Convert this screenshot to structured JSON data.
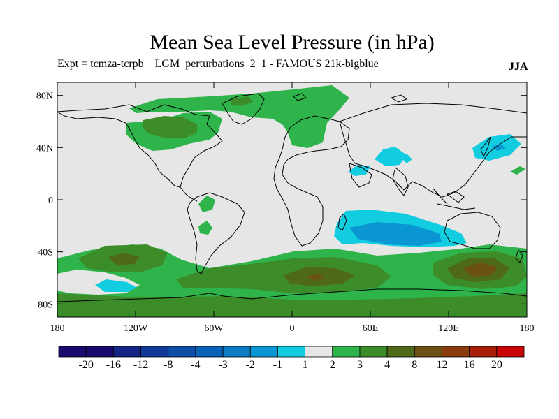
{
  "header": {
    "title": "Mean Sea Level Pressure (in hPa)",
    "subtitle": "Expt = tcmza-tcrpb    LGM_perturbations_2_1 - FAMOUS 21k-bigblue",
    "season": "JJA"
  },
  "axes": {
    "lat_ticks": [
      "80N",
      "40N",
      "0",
      "40S",
      "80S"
    ],
    "lon_ticks": [
      "180",
      "120W",
      "60W",
      "0",
      "60E",
      "120E",
      "180"
    ]
  },
  "colorbar": {
    "labels": [
      "-20",
      "-16",
      "-12",
      "-8",
      "-4",
      "-3",
      "-2",
      "-1",
      "1",
      "2",
      "3",
      "4",
      "8",
      "12",
      "16",
      "20"
    ],
    "colors": [
      "#1a0a6e",
      "#142583",
      "#0f3a96",
      "#0c4ea8",
      "#0a62b6",
      "#0c7cc6",
      "#0a96d2",
      "#12cce0",
      "#e6e6e6",
      "#2eb44a",
      "#3d8c2a",
      "#4e6a18",
      "#6b5214",
      "#8b3c0e",
      "#a81e08",
      "#c80404"
    ]
  },
  "chart_data": {
    "type": "heatmap",
    "title": "Mean Sea Level Pressure (in hPa)",
    "variable": "Mean sea level pressure difference",
    "units": "hPa",
    "season": "JJA",
    "xlim": [
      -180,
      180
    ],
    "ylim": [
      -90,
      90
    ],
    "contour_levels": [
      -20,
      -16,
      -12,
      -8,
      -4,
      -3,
      -2,
      -1,
      1,
      2,
      3,
      4,
      8,
      12,
      16,
      20
    ],
    "regions": [
      {
        "lon": [
          -130,
          -50
        ],
        "lat": [
          40,
          60
        ],
        "value": 2
      },
      {
        "lon": [
          -105,
          -75
        ],
        "lat": [
          45,
          58
        ],
        "value": 3
      },
      {
        "lon": [
          -50,
          10
        ],
        "lat": [
          60,
          75
        ],
        "value": 2
      },
      {
        "lon": [
          0,
          20
        ],
        "lat": [
          40,
          65
        ],
        "value": 2
      },
      {
        "lon": [
          65,
          85
        ],
        "lat": [
          30,
          40
        ],
        "value": -1
      },
      {
        "lon": [
          35,
          55
        ],
        "lat": [
          20,
          28
        ],
        "value": -1
      },
      {
        "lon": [
          135,
          180
        ],
        "lat": [
          30,
          45
        ],
        "value": -1
      },
      {
        "lon": [
          150,
          160
        ],
        "lat": [
          38,
          40
        ],
        "value": -2
      },
      {
        "lon": [
          -70,
          -55
        ],
        "lat": [
          -5,
          -5
        ],
        "value": 2
      },
      {
        "lon": [
          -70,
          -55
        ],
        "lat": [
          -20,
          -30
        ],
        "value": 2
      },
      {
        "lon": [
          40,
          120
        ],
        "lat": [
          -10,
          -35
        ],
        "value": -1
      },
      {
        "lon": [
          60,
          110
        ],
        "lat": [
          -20,
          -35
        ],
        "value": -2
      },
      {
        "lon": [
          -180,
          180
        ],
        "lat": [
          -40,
          -85
        ],
        "value": 2
      },
      {
        "lon": [
          -140,
          -110
        ],
        "lat": [
          -45,
          -55
        ],
        "value": 3
      },
      {
        "lon": [
          -20,
          80
        ],
        "lat": [
          -50,
          -70
        ],
        "value": 3
      },
      {
        "lon": [
          0,
          40
        ],
        "lat": [
          -55,
          -65
        ],
        "value": 4
      },
      {
        "lon": [
          100,
          180
        ],
        "lat": [
          -45,
          -65
        ],
        "value": 3
      },
      {
        "lon": [
          130,
          170
        ],
        "lat": [
          -50,
          -60
        ],
        "value": 4
      },
      {
        "lon": [
          -150,
          -120
        ],
        "lat": [
          -65,
          -70
        ],
        "value": -1
      }
    ]
  }
}
